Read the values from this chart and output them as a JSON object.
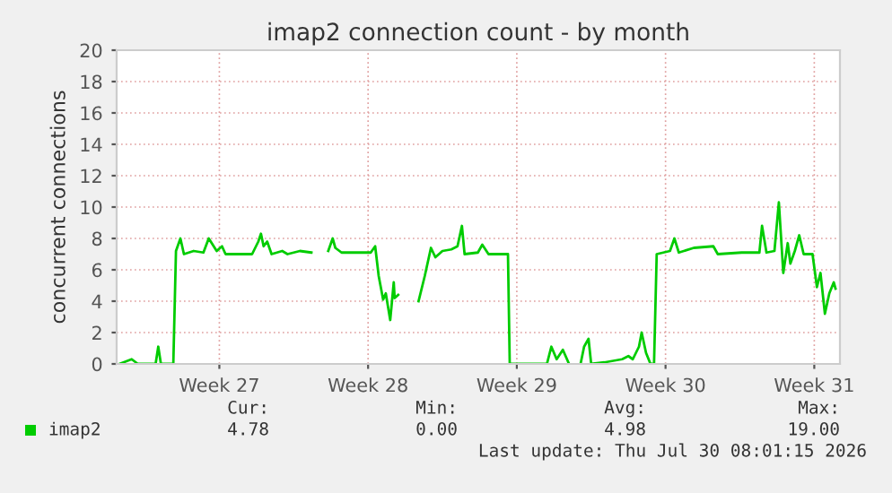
{
  "chart_data": {
    "type": "line",
    "title": "imap2 connection count - by month",
    "ylabel": "concurrent connections",
    "xlim": [
      "2026-06-26T04:00",
      "2026-07-30T05:00"
    ],
    "xticks": [
      {
        "value": "2026-07-01",
        "label": "Week 27"
      },
      {
        "value": "2026-07-08",
        "label": "Week 28"
      },
      {
        "value": "2026-07-15",
        "label": "Week 29"
      },
      {
        "value": "2026-07-22",
        "label": "Week 30"
      },
      {
        "value": "2026-07-29",
        "label": "Week 31"
      }
    ],
    "ylim": [
      0,
      20
    ],
    "yticks": [
      0,
      2,
      4,
      6,
      8,
      10,
      12,
      14,
      16,
      18,
      20
    ],
    "grid": true,
    "legend": "bottom left",
    "series": [
      {
        "name": "imap2",
        "color": "#00cc00",
        "x": [
          "2026-06-26T07:00",
          "2026-06-26T21:00",
          "2026-06-27T04:00",
          "2026-06-28T00:00",
          "2026-06-28T03:00",
          "2026-06-28T06:00",
          "2026-06-28T20:00",
          "2026-06-28T23:00",
          "2026-06-29T04:00",
          "2026-06-29T08:00",
          "2026-06-29T19:00",
          "2026-06-30T06:00",
          "2026-06-30T12:00",
          "2026-06-30T21:00",
          "2026-07-01T03:00",
          "2026-07-01T07:00",
          "2026-07-02T13:00",
          "2026-07-02T20:00",
          "2026-07-02T23:00",
          "2026-07-03T02:00",
          "2026-07-03T06:00",
          "2026-07-03T11:00",
          "2026-07-03T23:00",
          "2026-07-04T05:00",
          "2026-07-04T19:00",
          "2026-07-05T08:00",
          "2026-07-05T17:00",
          "2026-07-06T03:00",
          "2026-07-06T08:00",
          "2026-07-06T11:00",
          "2026-07-06T18:00",
          "2026-07-07T14:00",
          "2026-07-08T03:00",
          "2026-07-08T08:00",
          "2026-07-08T12:00",
          "2026-07-08T17:00",
          "2026-07-08T20:00",
          "2026-07-09T01:00",
          "2026-07-09T05:00",
          "2026-07-09T06:00",
          "2026-07-09T10:00",
          "2026-07-09T21:00",
          "2026-07-10T09:00",
          "2026-07-10T16:00",
          "2026-07-10T23:00",
          "2026-07-11T04:00",
          "2026-07-11T12:00",
          "2026-07-11T22:00",
          "2026-07-12T05:00",
          "2026-07-12T10:00",
          "2026-07-12T13:00",
          "2026-07-13T04:00",
          "2026-07-13T09:00",
          "2026-07-13T16:00",
          "2026-07-14T07:00",
          "2026-07-14T14:00",
          "2026-07-14T16:00",
          "2026-07-15T03:00",
          "2026-07-16T10:00",
          "2026-07-16T15:00",
          "2026-07-16T21:00",
          "2026-07-17T04:00",
          "2026-07-17T11:00",
          "2026-07-17T18:00",
          "2026-07-18T00:00",
          "2026-07-18T04:00",
          "2026-07-18T09:00",
          "2026-07-18T12:00",
          "2026-07-19T03:00",
          "2026-07-19T23:00",
          "2026-07-20T06:00",
          "2026-07-20T11:00",
          "2026-07-20T18:00",
          "2026-07-20T21:00",
          "2026-07-21T02:00",
          "2026-07-21T07:00",
          "2026-07-21T11:00",
          "2026-07-21T14:00",
          "2026-07-22T05:00",
          "2026-07-22T10:00",
          "2026-07-22T15:00",
          "2026-07-23T08:00",
          "2026-07-24T06:00",
          "2026-07-24T11:00",
          "2026-07-25T14:00",
          "2026-07-26T10:00",
          "2026-07-26T13:00",
          "2026-07-26T18:00",
          "2026-07-27T03:00",
          "2026-07-27T08:00",
          "2026-07-27T13:00",
          "2026-07-27T18:00",
          "2026-07-27T21:00",
          "2026-07-28T02:00",
          "2026-07-28T07:00",
          "2026-07-28T12:00",
          "2026-07-28T22:00",
          "2026-07-29T03:00",
          "2026-07-29T07:00",
          "2026-07-29T12:00",
          "2026-07-29T17:00",
          "2026-07-29T22:00",
          "2026-07-30T00:00"
        ],
        "values": [
          0,
          0.3,
          0,
          0,
          1.1,
          0,
          0,
          7.2,
          8.0,
          7.0,
          7.2,
          7.1,
          8.0,
          7.2,
          7.5,
          7,
          7,
          7.8,
          8.3,
          7.5,
          7.8,
          7,
          7.2,
          7,
          7.2,
          7.1,
          null,
          7.2,
          8.0,
          7.4,
          7.1,
          7.1,
          7.1,
          7.5,
          5.6,
          4.1,
          4.5,
          2.8,
          5.2,
          4.2,
          4.4,
          null,
          4.0,
          5.6,
          7.4,
          6.8,
          7.2,
          7.3,
          7.5,
          8.8,
          7,
          7.1,
          7.6,
          7,
          7,
          7,
          0,
          0,
          0,
          1.1,
          0.3,
          0.9,
          0,
          null,
          0,
          1.1,
          1.6,
          0,
          0.1,
          0.3,
          0.5,
          0.3,
          1.1,
          2.0,
          0.7,
          0,
          0,
          7,
          7.2,
          8.0,
          7.1,
          7.4,
          7.5,
          7,
          7.1,
          7.1,
          8.8,
          7.1,
          7.2,
          10.3,
          5.8,
          7.7,
          6.4,
          7.2,
          8.2,
          7,
          7,
          4.9,
          5.8,
          3.2,
          4.5,
          5.2,
          4.8
        ]
      }
    ],
    "annotations": [
      "Cur:",
      "Min:",
      "Avg:",
      "Max:",
      "4.78",
      "0.00",
      "4.98",
      "19.00",
      "Last update: Thu Jul 30 08:01:15 2026"
    ]
  }
}
